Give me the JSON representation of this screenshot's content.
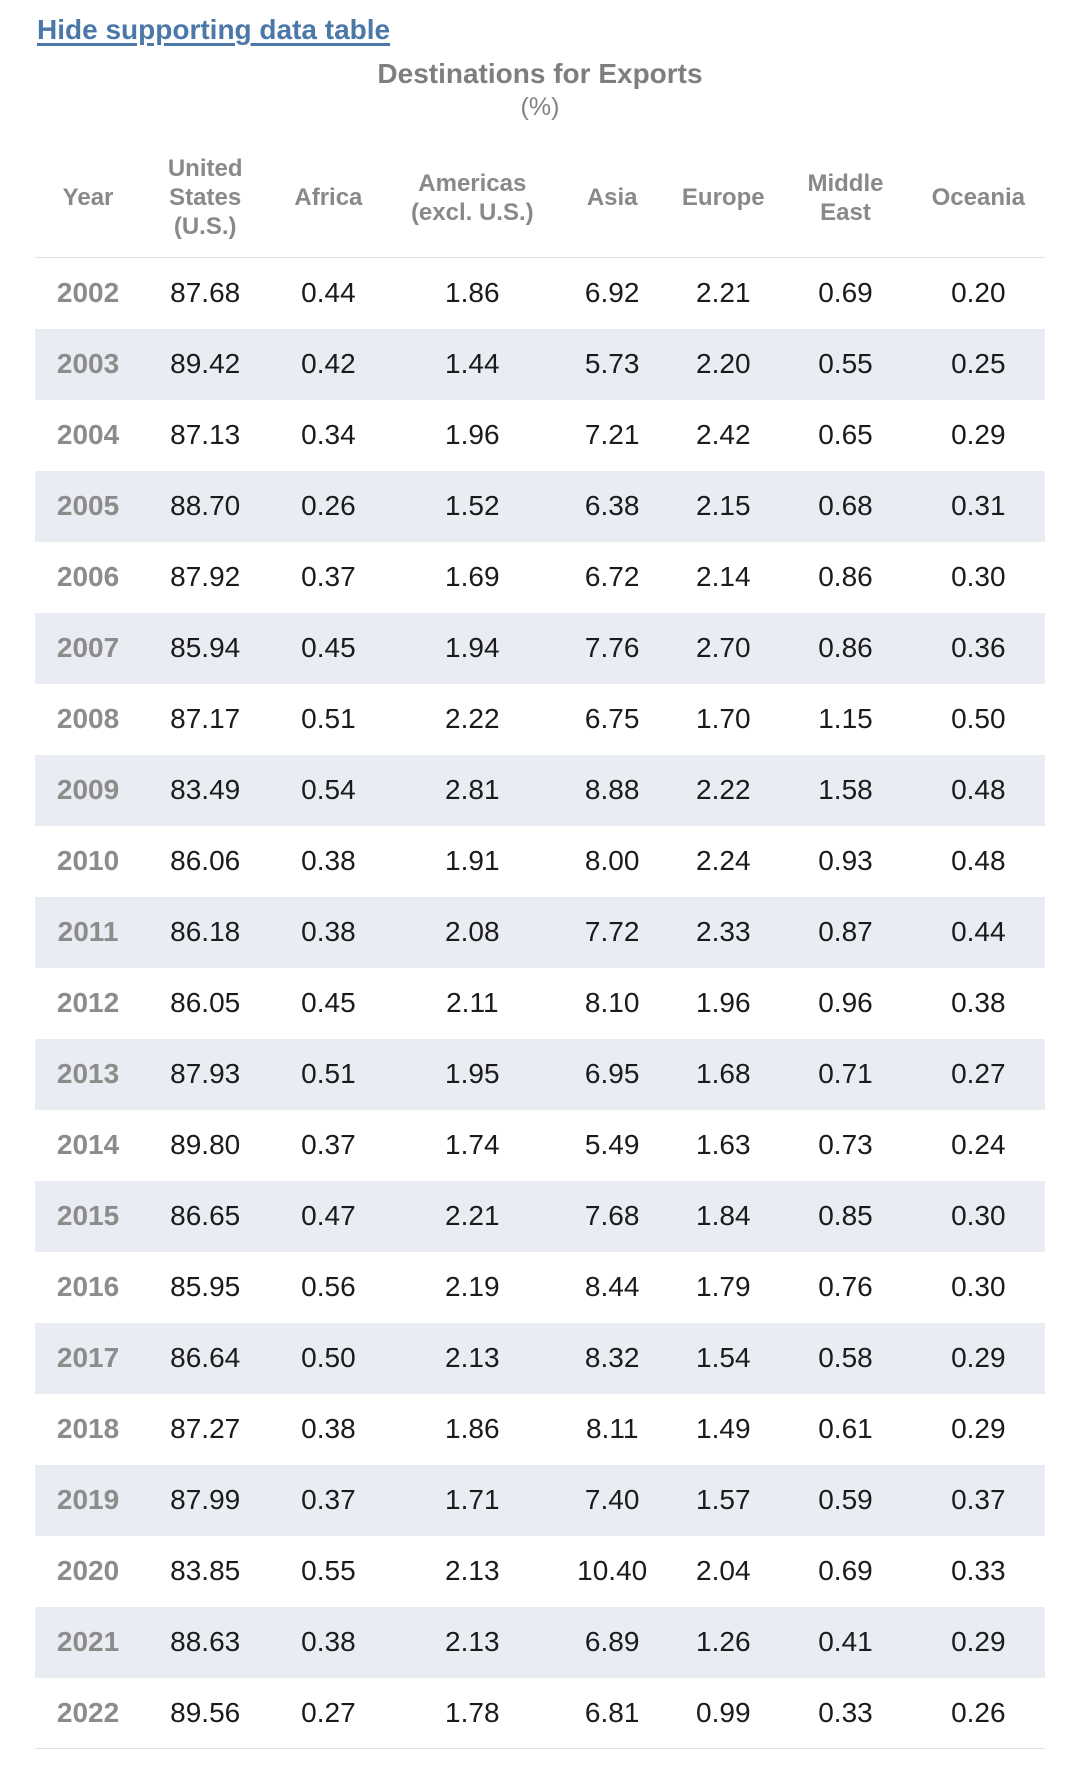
{
  "colors": {
    "link_blue": "#4b77a9",
    "title_gray": "#7e7e7e",
    "header_gray": "#898989",
    "row_stripe": "#eaecf3",
    "data_text": "#1b1b1b",
    "divider": "#e1e1e1"
  },
  "toggle_link": {
    "label": "Hide supporting data table"
  },
  "title": {
    "text": "Destinations for Exports",
    "subtitle": "(%)"
  },
  "table": {
    "column_headers": [
      "Year",
      "United\nStates\n(U.S.)",
      "Africa",
      "Americas\n(excl. U.S.)",
      "Asia",
      "Europe",
      "Middle\nEast",
      "Oceania"
    ],
    "column_widths_pct": [
      10.5,
      12.7,
      11.7,
      16.8,
      10.9,
      11.1,
      13.1,
      13.2
    ],
    "rows": [
      [
        "2002",
        "87.68",
        "0.44",
        "1.86",
        "6.92",
        "2.21",
        "0.69",
        "0.20"
      ],
      [
        "2003",
        "89.42",
        "0.42",
        "1.44",
        "5.73",
        "2.20",
        "0.55",
        "0.25"
      ],
      [
        "2004",
        "87.13",
        "0.34",
        "1.96",
        "7.21",
        "2.42",
        "0.65",
        "0.29"
      ],
      [
        "2005",
        "88.70",
        "0.26",
        "1.52",
        "6.38",
        "2.15",
        "0.68",
        "0.31"
      ],
      [
        "2006",
        "87.92",
        "0.37",
        "1.69",
        "6.72",
        "2.14",
        "0.86",
        "0.30"
      ],
      [
        "2007",
        "85.94",
        "0.45",
        "1.94",
        "7.76",
        "2.70",
        "0.86",
        "0.36"
      ],
      [
        "2008",
        "87.17",
        "0.51",
        "2.22",
        "6.75",
        "1.70",
        "1.15",
        "0.50"
      ],
      [
        "2009",
        "83.49",
        "0.54",
        "2.81",
        "8.88",
        "2.22",
        "1.58",
        "0.48"
      ],
      [
        "2010",
        "86.06",
        "0.38",
        "1.91",
        "8.00",
        "2.24",
        "0.93",
        "0.48"
      ],
      [
        "2011",
        "86.18",
        "0.38",
        "2.08",
        "7.72",
        "2.33",
        "0.87",
        "0.44"
      ],
      [
        "2012",
        "86.05",
        "0.45",
        "2.11",
        "8.10",
        "1.96",
        "0.96",
        "0.38"
      ],
      [
        "2013",
        "87.93",
        "0.51",
        "1.95",
        "6.95",
        "1.68",
        "0.71",
        "0.27"
      ],
      [
        "2014",
        "89.80",
        "0.37",
        "1.74",
        "5.49",
        "1.63",
        "0.73",
        "0.24"
      ],
      [
        "2015",
        "86.65",
        "0.47",
        "2.21",
        "7.68",
        "1.84",
        "0.85",
        "0.30"
      ],
      [
        "2016",
        "85.95",
        "0.56",
        "2.19",
        "8.44",
        "1.79",
        "0.76",
        "0.30"
      ],
      [
        "2017",
        "86.64",
        "0.50",
        "2.13",
        "8.32",
        "1.54",
        "0.58",
        "0.29"
      ],
      [
        "2018",
        "87.27",
        "0.38",
        "1.86",
        "8.11",
        "1.49",
        "0.61",
        "0.29"
      ],
      [
        "2019",
        "87.99",
        "0.37",
        "1.71",
        "7.40",
        "1.57",
        "0.59",
        "0.37"
      ],
      [
        "2020",
        "83.85",
        "0.55",
        "2.13",
        "10.40",
        "2.04",
        "0.69",
        "0.33"
      ],
      [
        "2021",
        "88.63",
        "0.38",
        "2.13",
        "6.89",
        "1.26",
        "0.41",
        "0.29"
      ],
      [
        "2022",
        "89.56",
        "0.27",
        "1.78",
        "6.81",
        "0.99",
        "0.33",
        "0.26"
      ]
    ]
  },
  "chart_data": {
    "type": "table",
    "title": "Destinations for Exports",
    "subtitle": "(%)",
    "categories": [
      2002,
      2003,
      2004,
      2005,
      2006,
      2007,
      2008,
      2009,
      2010,
      2011,
      2012,
      2013,
      2014,
      2015,
      2016,
      2017,
      2018,
      2019,
      2020,
      2021,
      2022
    ],
    "series": [
      {
        "name": "United States (U.S.)",
        "values": [
          87.68,
          89.42,
          87.13,
          88.7,
          87.92,
          85.94,
          87.17,
          83.49,
          86.06,
          86.18,
          86.05,
          87.93,
          89.8,
          86.65,
          85.95,
          86.64,
          87.27,
          87.99,
          83.85,
          88.63,
          89.56
        ]
      },
      {
        "name": "Africa",
        "values": [
          0.44,
          0.42,
          0.34,
          0.26,
          0.37,
          0.45,
          0.51,
          0.54,
          0.38,
          0.38,
          0.45,
          0.51,
          0.37,
          0.47,
          0.56,
          0.5,
          0.38,
          0.37,
          0.55,
          0.38,
          0.27
        ]
      },
      {
        "name": "Americas (excl. U.S.)",
        "values": [
          1.86,
          1.44,
          1.96,
          1.52,
          1.69,
          1.94,
          2.22,
          2.81,
          1.91,
          2.08,
          2.11,
          1.95,
          1.74,
          2.21,
          2.19,
          2.13,
          1.86,
          1.71,
          2.13,
          2.13,
          1.78
        ]
      },
      {
        "name": "Asia",
        "values": [
          6.92,
          5.73,
          7.21,
          6.38,
          6.72,
          7.76,
          6.75,
          8.88,
          8.0,
          7.72,
          8.1,
          6.95,
          5.49,
          7.68,
          8.44,
          8.32,
          8.11,
          7.4,
          10.4,
          6.89,
          6.81
        ]
      },
      {
        "name": "Europe",
        "values": [
          2.21,
          2.2,
          2.42,
          2.15,
          2.14,
          2.7,
          1.7,
          2.22,
          2.24,
          2.33,
          1.96,
          1.68,
          1.63,
          1.84,
          1.79,
          1.54,
          1.49,
          1.57,
          2.04,
          1.26,
          0.99
        ]
      },
      {
        "name": "Middle East",
        "values": [
          0.69,
          0.55,
          0.65,
          0.68,
          0.86,
          0.86,
          1.15,
          1.58,
          0.93,
          0.87,
          0.96,
          0.71,
          0.73,
          0.85,
          0.76,
          0.58,
          0.61,
          0.59,
          0.69,
          0.41,
          0.33
        ]
      },
      {
        "name": "Oceania",
        "values": [
          0.2,
          0.25,
          0.29,
          0.31,
          0.3,
          0.36,
          0.5,
          0.48,
          0.48,
          0.44,
          0.38,
          0.27,
          0.24,
          0.3,
          0.3,
          0.29,
          0.29,
          0.37,
          0.33,
          0.29,
          0.26
        ]
      }
    ]
  }
}
